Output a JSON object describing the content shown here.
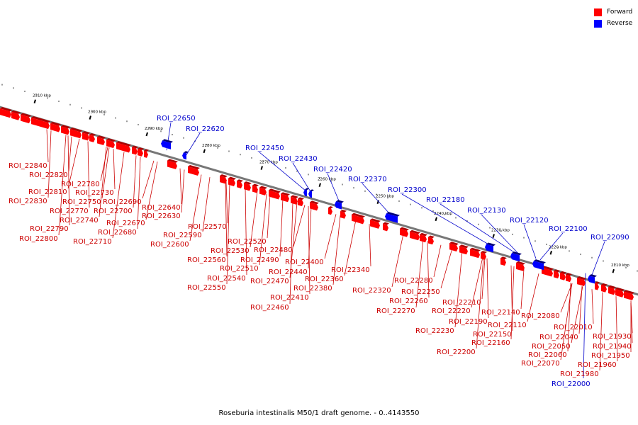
{
  "legend": {
    "forward_label": "Forward",
    "reverse_label": "Reverse",
    "forward_color": "#ff0000",
    "reverse_color": "#0000ff"
  },
  "caption": "Roseburia intestinalis M50/1 draft genome. - 0..4143550",
  "ticks": [
    "2310 kbp",
    "2300 kbp",
    "2290 kbp",
    "2280 kbp",
    "2270 kbp",
    "2260 kbp",
    "2250 kbp",
    "2240 kbp",
    "2230 kbp",
    "2220 kbp",
    "2210 kbp"
  ],
  "forward_labels": [
    "ROI_22840",
    "ROI_22820",
    "ROI_22780",
    "ROI_22810",
    "ROI_22730",
    "ROI_22830",
    "ROI_22750",
    "ROI_22690",
    "ROI_22770",
    "ROI_22700",
    "ROI_22740",
    "ROI_22670",
    "ROI_22790",
    "ROI_22680",
    "ROI_22800",
    "ROI_22710",
    "ROI_22640",
    "ROI_22630",
    "ROI_22590",
    "ROI_22600",
    "ROI_22570",
    "ROI_22520",
    "ROI_22530",
    "ROI_22480",
    "ROI_22560",
    "ROI_22490",
    "ROI_22510",
    "ROI_22400",
    "ROI_22540",
    "ROI_22440",
    "ROI_22470",
    "ROI_22360",
    "ROI_22340",
    "ROI_22550",
    "ROI_22380",
    "ROI_22320",
    "ROI_22410",
    "ROI_22460",
    "ROI_22280",
    "ROI_22250",
    "ROI_22260",
    "ROI_22210",
    "ROI_22270",
    "ROI_22220",
    "ROI_22190",
    "ROI_22140",
    "ROI_22230",
    "ROI_22110",
    "ROI_22150",
    "ROI_22160",
    "ROI_22200",
    "ROI_22080",
    "ROI_22010",
    "ROI_22040",
    "ROI_21930",
    "ROI_22050",
    "ROI_21940",
    "ROI_22060",
    "ROI_21950",
    "ROI_22070",
    "ROI_21960",
    "ROI_21980"
  ],
  "reverse_labels": [
    "ROI_22650",
    "ROI_22620",
    "ROI_22450",
    "ROI_22430",
    "ROI_22420",
    "ROI_22370",
    "ROI_22300",
    "ROI_22180",
    "ROI_22130",
    "ROI_22120",
    "ROI_22100",
    "ROI_22090",
    "ROI_22000"
  ]
}
